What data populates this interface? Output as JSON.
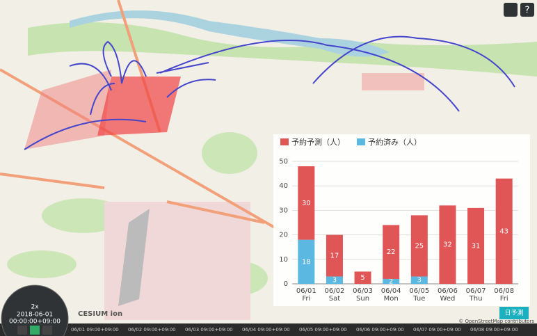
{
  "chart_data": {
    "type": "bar",
    "stacked": true,
    "categories": [
      "06/01",
      "06/02",
      "06/03",
      "06/04",
      "06/05",
      "06/06",
      "06/07",
      "06/08"
    ],
    "category_sublabels": [
      "Fri",
      "Sat",
      "Sun",
      "Mon",
      "Tue",
      "Wed",
      "Thu",
      "Fri"
    ],
    "series": [
      {
        "name": "予約済み（人）",
        "color": "#5bb8e0",
        "values": [
          18,
          3,
          0,
          2,
          3,
          0,
          0,
          0
        ]
      },
      {
        "name": "予約予測（人）",
        "color": "#e05555",
        "values": [
          30,
          17,
          5,
          22,
          25,
          32,
          31,
          43
        ]
      }
    ],
    "ylim": [
      0,
      50
    ],
    "yticks": [
      0,
      10,
      20,
      30,
      40,
      50
    ],
    "grid": true,
    "legend": "top-left"
  },
  "ui": {
    "button": "日予測",
    "attribution": "© OpenStreetMap contributors",
    "logo": "CESIUM ion",
    "clock": {
      "speed": "2x",
      "date": "2018-06-01",
      "time": "00:00:00+09:00"
    },
    "timeline": [
      "06/01 09:00+09:00",
      "06/02 09:00+09:00",
      "06/03 09:00+09:00",
      "06/04 09:00+09:00",
      "06/05 09:00+09:00",
      "06/06 09:00+09:00",
      "06/07 09:00+09:00",
      "06/08 09:00+09:00"
    ]
  }
}
